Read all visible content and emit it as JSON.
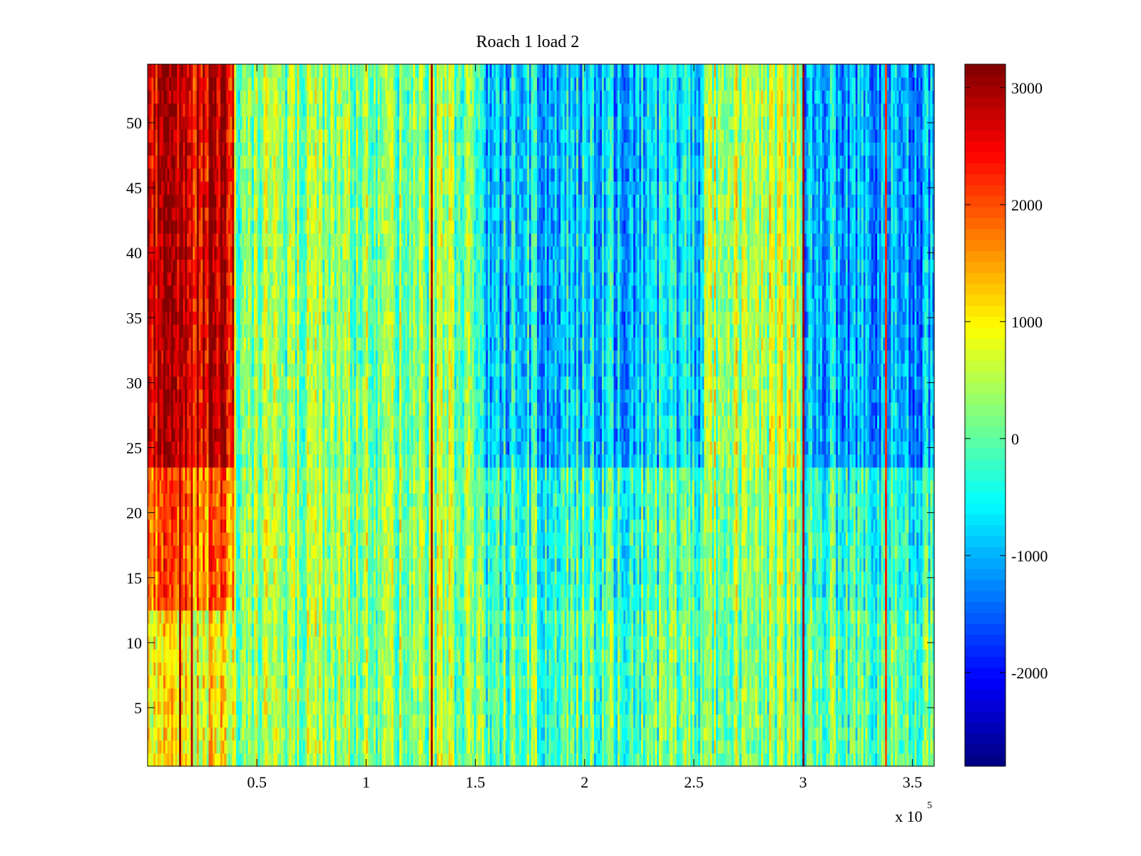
{
  "chart_data": {
    "type": "heatmap",
    "title": "Roach 1 load 2",
    "xlabel": "",
    "ylabel": "",
    "x_multiplier_label": "x 10",
    "x_multiplier_exponent": "5",
    "xlim": [
      0,
      3.6
    ],
    "ylim": [
      0.5,
      54.5
    ],
    "x_ticks": [
      0.5,
      1,
      1.5,
      2,
      2.5,
      3,
      3.5
    ],
    "x_tick_labels": [
      "0.5",
      "1",
      "1.5",
      "2",
      "2.5",
      "3",
      "3.5"
    ],
    "y_ticks": [
      5,
      10,
      15,
      20,
      25,
      30,
      35,
      40,
      45,
      50
    ],
    "y_tick_labels": [
      "5",
      "10",
      "15",
      "20",
      "25",
      "30",
      "35",
      "40",
      "45",
      "50"
    ],
    "rows": 54,
    "colormap": "jet",
    "color_range": [
      -2800,
      3200
    ],
    "colorbar_ticks": [
      3000,
      2000,
      1000,
      0,
      -1000,
      -2000
    ],
    "colorbar_tick_labels": [
      "3000",
      "2000",
      "1000",
      "0",
      "-1000",
      "-2000"
    ],
    "column_segments": [
      {
        "x_start": 0.0,
        "x_end": 0.4,
        "rows_1_12": 900,
        "rows_13_23": 1800,
        "rows_24_54": 2700
      },
      {
        "x_start": 0.4,
        "x_end": 1.5,
        "rows_1_12": 300,
        "rows_13_23": 350,
        "rows_24_54": 250
      },
      {
        "x_start": 1.5,
        "x_end": 2.55,
        "rows_1_12": 0,
        "rows_13_23": -200,
        "rows_24_54": -800
      },
      {
        "x_start": 2.55,
        "x_end": 3.0,
        "rows_1_12": 200,
        "rows_13_23": 300,
        "rows_24_54": 500
      },
      {
        "x_start": 3.0,
        "x_end": 3.6,
        "rows_1_12": 0,
        "rows_13_23": -300,
        "rows_24_54": -1000
      }
    ],
    "strong_columns": [
      {
        "x": 0.145,
        "value": 3200
      },
      {
        "x": 0.2,
        "value": 3000
      },
      {
        "x": 1.3,
        "value": 3200
      },
      {
        "x": 3.0,
        "value": 3200
      },
      {
        "x": 3.38,
        "value": 2400
      }
    ]
  }
}
